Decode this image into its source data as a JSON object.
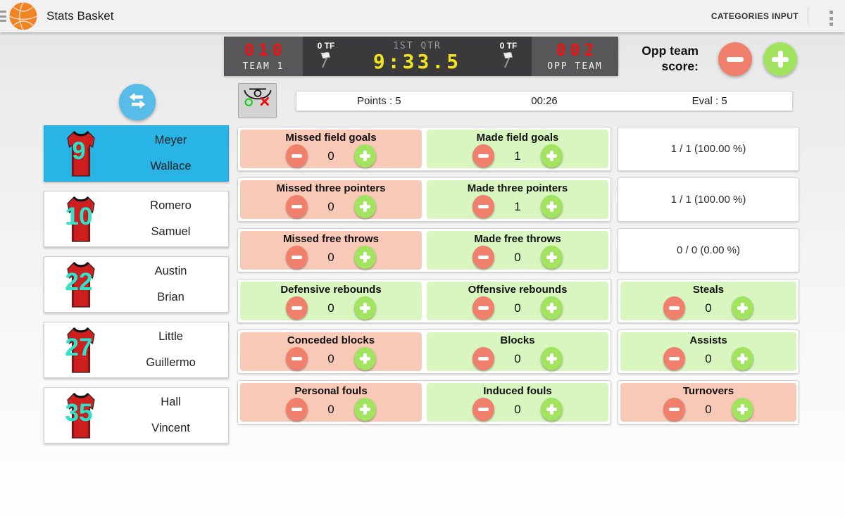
{
  "header": {
    "title": "Stats Basket",
    "action_label": "CATEGORIES INPUT"
  },
  "scoreboard": {
    "home": {
      "score": "010",
      "name": "TEAM 1",
      "timeouts": "0 TF"
    },
    "center": {
      "period": "1ST QTR",
      "clock": "9:33.5"
    },
    "away": {
      "score": "002",
      "name": "OPP TEAM",
      "timeouts": "0 TF"
    }
  },
  "opp_score_control": {
    "label_line1": "Opp team",
    "label_line2": "score:"
  },
  "summary_bar": {
    "points": "Points : 5",
    "elapsed": "00:26",
    "eval": "Eval : 5"
  },
  "players": [
    {
      "number": "9",
      "last": "Meyer",
      "first": "Wallace",
      "selected": true
    },
    {
      "number": "10",
      "last": "Romero",
      "first": "Samuel",
      "selected": false
    },
    {
      "number": "22",
      "last": "Austin",
      "first": "Brian",
      "selected": false
    },
    {
      "number": "27",
      "last": "Little",
      "first": "Guillermo",
      "selected": false
    },
    {
      "number": "35",
      "last": "Hall",
      "first": "Vincent",
      "selected": false
    }
  ],
  "stat_rows": [
    {
      "cells": [
        {
          "label": "Missed field goals",
          "value": "0",
          "variant": "red"
        },
        {
          "label": "Made field goals",
          "value": "1",
          "variant": "green"
        }
      ],
      "summary": "1 / 1 (100.00 %)"
    },
    {
      "cells": [
        {
          "label": "Missed three pointers",
          "value": "0",
          "variant": "red"
        },
        {
          "label": "Made three pointers",
          "value": "1",
          "variant": "green"
        }
      ],
      "summary": "1 / 1 (100.00 %)"
    },
    {
      "cells": [
        {
          "label": "Missed free throws",
          "value": "0",
          "variant": "red"
        },
        {
          "label": "Made free throws",
          "value": "0",
          "variant": "green"
        }
      ],
      "summary": "0 / 0 (0.00 %)"
    },
    {
      "cells": [
        {
          "label": "Defensive rebounds",
          "value": "0",
          "variant": "green"
        },
        {
          "label": "Offensive rebounds",
          "value": "0",
          "variant": "green"
        }
      ],
      "third": {
        "label": "Steals",
        "value": "0",
        "variant": "green"
      }
    },
    {
      "cells": [
        {
          "label": "Conceded blocks",
          "value": "0",
          "variant": "red"
        },
        {
          "label": "Blocks",
          "value": "0",
          "variant": "green"
        }
      ],
      "third": {
        "label": "Assists",
        "value": "0",
        "variant": "green"
      }
    },
    {
      "cells": [
        {
          "label": "Personal fouls",
          "value": "0",
          "variant": "red"
        },
        {
          "label": "Induced fouls",
          "value": "0",
          "variant": "green"
        }
      ],
      "third": {
        "label": "Turnovers",
        "value": "0",
        "variant": "red"
      }
    }
  ],
  "colors": {
    "selected_blue": "#29b4e6",
    "swap_blue": "#58bce9",
    "salmon_cell": "#f9c9b8",
    "green_cell": "#d9f6c0",
    "minus_red": "#f0806c",
    "plus_green": "#a2e35f",
    "led_red": "#ee1212",
    "led_yellow": "#f2e41c",
    "jersey_red": "#cf1e1e",
    "number_teal": "#2fe3cb"
  }
}
